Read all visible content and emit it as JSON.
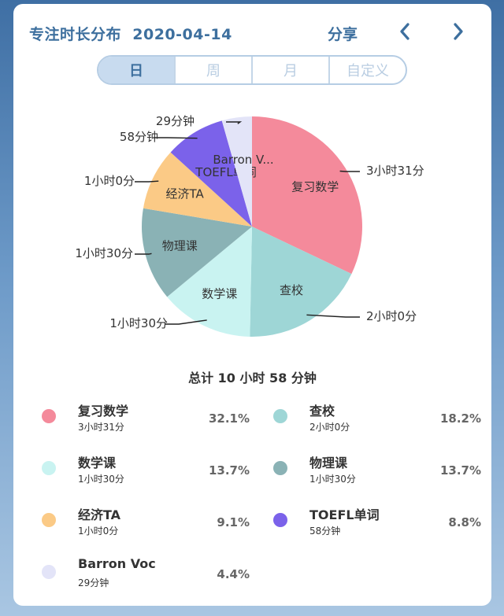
{
  "header": {
    "title": "专注时长分布",
    "date": "2020-04-14",
    "share_label": "分享",
    "prev_icon": "chevron-left-icon",
    "next_icon": "chevron-right-icon"
  },
  "tabs": [
    {
      "label": "日",
      "active": true
    },
    {
      "label": "周",
      "active": false
    },
    {
      "label": "月",
      "active": false
    },
    {
      "label": "自定义",
      "active": false
    }
  ],
  "total_text": "总计 10 小时 58 分钟",
  "chart_data": {
    "type": "pie",
    "slices": [
      {
        "name": "复习数学",
        "minutes": 211,
        "duration": "3小时31分",
        "percent": "32.1%",
        "color": "#f48a9b"
      },
      {
        "name": "查校",
        "minutes": 120,
        "duration": "2小时0分",
        "percent": "18.2%",
        "color": "#9ed6d6"
      },
      {
        "name": "数学课",
        "minutes": 90,
        "duration": "1小时30分",
        "percent": "13.7%",
        "color": "#c9f3f1"
      },
      {
        "name": "物理课",
        "minutes": 90,
        "duration": "1小时30分",
        "percent": "13.7%",
        "color": "#8ab2b5"
      },
      {
        "name": "经济TA",
        "minutes": 60,
        "duration": "1小时0分",
        "percent": "9.1%",
        "color": "#fbca86"
      },
      {
        "name": "TOEFL单词",
        "minutes": 58,
        "duration": "58分钟",
        "percent": "8.8%",
        "color": "#7b62ea"
      },
      {
        "name": "Barron Voc",
        "minutes": 29,
        "duration": "29分钟",
        "percent": "4.4%",
        "color": "#e3e4f8"
      }
    ],
    "inner_labels": [
      "复习数学",
      "查校",
      "数学课",
      "物理课",
      "经济TA",
      "TOEFL单词",
      "Barron V..."
    ]
  }
}
